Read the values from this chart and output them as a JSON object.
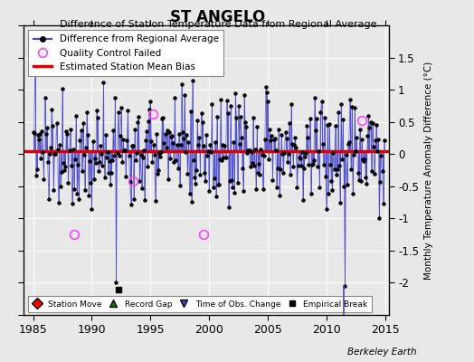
{
  "title": "ST ANGELO",
  "subtitle": "Difference of Station Temperature Data from Regional Average",
  "ylabel": "Monthly Temperature Anomaly Difference (°C)",
  "xlim": [
    1984.2,
    2015.3
  ],
  "ylim": [
    -2.5,
    2.0
  ],
  "yticks_right": [
    -2,
    -1.5,
    -1,
    -0.5,
    0,
    0.5,
    1,
    1.5
  ],
  "yticks_left": [
    -2.5,
    -2,
    -1.5,
    -1,
    -0.5,
    0,
    0.5,
    1,
    1.5,
    2
  ],
  "xticks": [
    1985,
    1990,
    1995,
    2000,
    2005,
    2010,
    2015
  ],
  "mean_bias": 0.05,
  "bias_color": "#dd0000",
  "line_color": "#4444cc",
  "marker_color": "#000000",
  "qc_failed_color": "#ff44ff",
  "bg_color": "#e8e8e8",
  "plot_bg_color": "#e8e8e8",
  "grid_color": "#ffffff",
  "empirical_break_x": 1992.3,
  "empirical_break_y": -2.1,
  "time_of_obs_x": 2011.5,
  "qc_points": [
    [
      1988.5,
      -1.25
    ],
    [
      1993.5,
      -0.42
    ],
    [
      1995.2,
      0.62
    ],
    [
      1999.5,
      -1.25
    ],
    [
      2013.0,
      0.52
    ]
  ],
  "berkeley_earth_text": "Berkeley Earth",
  "seed": 137
}
